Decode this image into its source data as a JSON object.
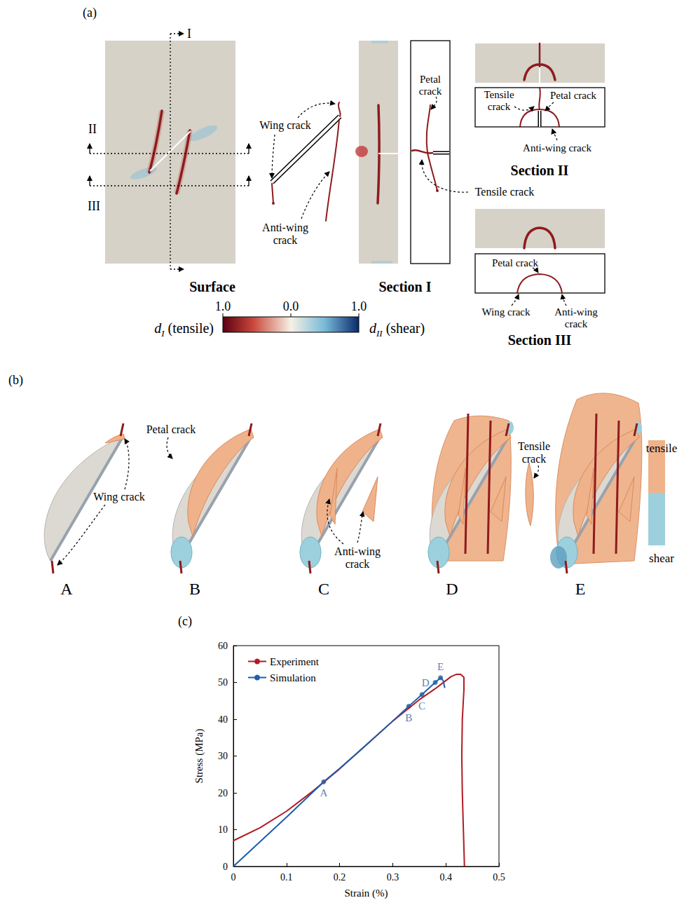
{
  "panel_a": {
    "letter": "(a)",
    "cut_markers": [
      "I",
      "II",
      "III"
    ],
    "titles": {
      "surface": "Surface",
      "section_1": "Section I",
      "section_2": "Section II",
      "section_3": "Section III"
    },
    "surface_schematic": {
      "wing": "Wing crack",
      "anti_wing": "Anti-wing crack"
    },
    "section_1": {
      "petal": "Petal crack",
      "tensile": "Tensile crack"
    },
    "section_2": {
      "tensile": "Tensile crack",
      "petal": "Petal crack",
      "anti_wing": "Anti-wing crack"
    },
    "section_3": {
      "petal": "Petal crack",
      "wing": "Wing crack",
      "anti_wing": "Anti-wing crack"
    },
    "colorbar": {
      "left_symbol": "d",
      "left_sub": "I",
      "left_text": "(tensile)",
      "right_symbol": "d",
      "right_sub": "II",
      "right_text": "(shear)",
      "ticks": [
        "1.0",
        "0.0",
        "1.0"
      ]
    }
  },
  "panel_b": {
    "letter": "(b)",
    "stages": [
      "A",
      "B",
      "C",
      "D",
      "E"
    ],
    "labels": {
      "petal": "Petal crack",
      "wing": "Wing crack",
      "anti_wing": "Anti-wing crack",
      "tensile": "Tensile crack"
    },
    "colorbar": [
      "tensile",
      "shear"
    ]
  },
  "chart_data": {
    "type": "line",
    "panel_label": "(c)",
    "x_label": "Strain (%)",
    "y_label": "Stress (MPa)",
    "xlim": [
      0,
      0.5
    ],
    "xticks": [
      0,
      0.1,
      0.2,
      0.3,
      0.4,
      0.5
    ],
    "ylim": [
      0,
      60
    ],
    "yticks": [
      0,
      10,
      20,
      30,
      40,
      50,
      60
    ],
    "grid": false,
    "legend": "upper left",
    "series": [
      {
        "name": "Experiment",
        "color": "#b01c22",
        "x": [
          0,
          0.05,
          0.1,
          0.15,
          0.2,
          0.25,
          0.3,
          0.35,
          0.38,
          0.4,
          0.41,
          0.42,
          0.428,
          0.434,
          0.434,
          0.431,
          0.43,
          0.431,
          0.433,
          0.435
        ],
        "values": [
          7,
          10.5,
          15,
          20.5,
          26.5,
          33,
          39.5,
          45.3,
          48.3,
          50.5,
          51.6,
          52.2,
          52.2,
          51.4,
          48,
          40,
          30,
          20,
          10,
          0
        ]
      },
      {
        "name": "Simulation",
        "color": "#1f5ea8",
        "x": [
          0,
          0.1,
          0.17,
          0.2,
          0.25,
          0.3,
          0.33,
          0.355,
          0.38,
          0.39,
          0.395,
          0.398
        ],
        "values": [
          0,
          13.4,
          23,
          26.6,
          33,
          39.5,
          43.5,
          46.7,
          50,
          51.3,
          50.5,
          48.5
        ]
      }
    ],
    "annotations": [
      {
        "text": "A",
        "x": 0.17,
        "y": 23
      },
      {
        "text": "B",
        "x": 0.33,
        "y": 43.5
      },
      {
        "text": "C",
        "x": 0.355,
        "y": 46.7
      },
      {
        "text": "D",
        "x": 0.38,
        "y": 50
      },
      {
        "text": "E",
        "x": 0.39,
        "y": 51.3
      }
    ]
  }
}
